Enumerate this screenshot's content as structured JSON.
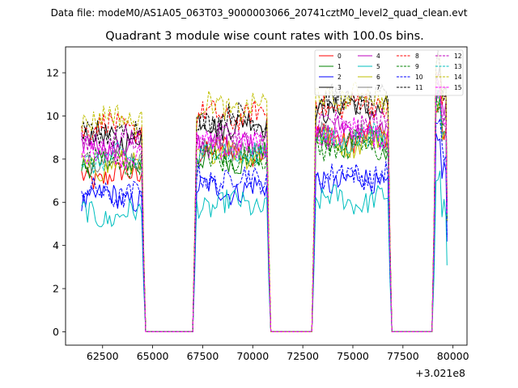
{
  "chart_data": {
    "type": "line",
    "suptitle": "Data file: modeM0/AS1A05_063T03_9000003066_20741cztM0_level2_quad_clean.evt",
    "title": "Quadrant 3 module wise count rates with 100.0s bins.",
    "xlabel": "",
    "ylabel": "",
    "x_offset_label": "+3.021e8",
    "x_offset": 302100000,
    "xlim": [
      60650,
      80700
    ],
    "ylim": [
      -0.62,
      13.2
    ],
    "xticks": [
      62500,
      65000,
      67500,
      70000,
      72500,
      75000,
      77500,
      80000
    ],
    "xtick_labels": [
      "62500",
      "65000",
      "67500",
      "70000",
      "72500",
      "75000",
      "77500",
      "80000"
    ],
    "yticks": [
      0,
      2,
      4,
      6,
      8,
      10,
      12
    ],
    "ytick_labels": [
      "0",
      "2",
      "4",
      "6",
      "8",
      "10",
      "12"
    ],
    "bin_seconds": 100,
    "legend_position": "top-right",
    "segments": [
      {
        "start": 61450,
        "end": 64450
      },
      {
        "start": 67200,
        "end": 70700
      },
      {
        "start": 73150,
        "end": 76750
      },
      {
        "start": 79150,
        "end": 79650
      }
    ],
    "series": [
      {
        "name": "0",
        "color": "#ff0000",
        "dashed": false,
        "levels": [
          7.2,
          8.4,
          9.0,
          9.3
        ]
      },
      {
        "name": "1",
        "color": "#008000",
        "dashed": false,
        "levels": [
          7.9,
          8.0,
          8.7,
          9.6
        ]
      },
      {
        "name": "2",
        "color": "#0000ff",
        "dashed": false,
        "levels": [
          6.2,
          6.6,
          7.0,
          7.6
        ]
      },
      {
        "name": "3",
        "color": "#000000",
        "dashed": false,
        "levels": [
          9.0,
          9.6,
          10.4,
          10.6
        ]
      },
      {
        "name": "4",
        "color": "#bf00bf",
        "dashed": false,
        "levels": [
          8.6,
          8.7,
          9.3,
          10.0
        ]
      },
      {
        "name": "5",
        "color": "#00bfbf",
        "dashed": false,
        "levels": [
          5.4,
          5.9,
          6.1,
          5.6
        ]
      },
      {
        "name": "6",
        "color": "#bfbf00",
        "dashed": false,
        "levels": [
          7.7,
          8.3,
          8.8,
          9.3
        ]
      },
      {
        "name": "7",
        "color": "#808080",
        "dashed": false,
        "levels": [
          8.1,
          8.5,
          9.0,
          9.9
        ]
      },
      {
        "name": "8",
        "color": "#ff0000",
        "dashed": true,
        "levels": [
          9.5,
          10.0,
          10.5,
          10.8
        ]
      },
      {
        "name": "9",
        "color": "#008000",
        "dashed": true,
        "levels": [
          7.8,
          8.0,
          8.6,
          9.4
        ]
      },
      {
        "name": "10",
        "color": "#0000ff",
        "dashed": true,
        "levels": [
          6.4,
          7.1,
          7.3,
          8.0
        ]
      },
      {
        "name": "11",
        "color": "#000000",
        "dashed": true,
        "levels": [
          9.2,
          9.9,
          10.7,
          11.0
        ]
      },
      {
        "name": "12",
        "color": "#bf00bf",
        "dashed": true,
        "levels": [
          8.8,
          9.0,
          9.6,
          10.3
        ]
      },
      {
        "name": "13",
        "color": "#00bfbf",
        "dashed": true,
        "levels": [
          8.0,
          8.3,
          8.9,
          9.8
        ]
      },
      {
        "name": "14",
        "color": "#bfbf00",
        "dashed": true,
        "levels": [
          9.9,
          10.4,
          10.9,
          11.3
        ]
      },
      {
        "name": "15",
        "color": "#ff00ff",
        "dashed": true,
        "levels": [
          8.3,
          8.6,
          9.2,
          10.0
        ]
      }
    ]
  }
}
